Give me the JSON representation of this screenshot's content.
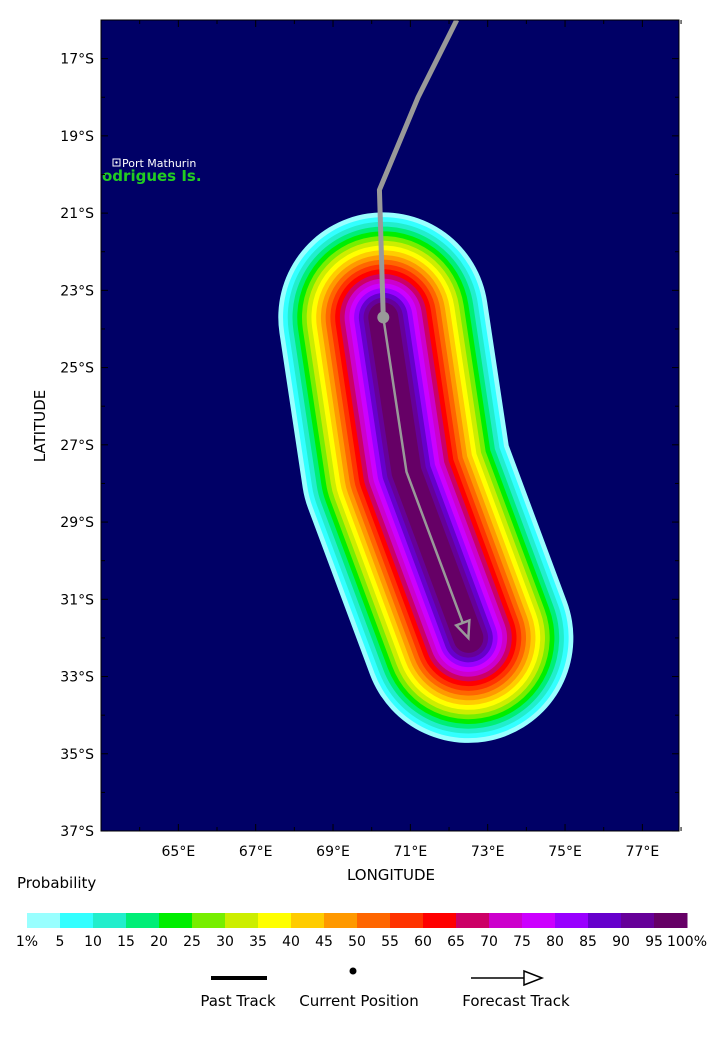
{
  "map": {
    "background_color": "#000066",
    "lat_ticks": [
      "17°S",
      "19°S",
      "21°S",
      "23°S",
      "25°S",
      "27°S",
      "29°S",
      "31°S",
      "33°S",
      "35°S",
      "37°S"
    ],
    "lon_ticks": [
      "65°E",
      "67°E",
      "69°E",
      "71°E",
      "73°E",
      "75°E",
      "77°E"
    ],
    "xlabel": "LONGITUDE",
    "ylabel": "LATITUDE",
    "place_label": "Port Mathurin",
    "island_label": "odrigues Is.",
    "island_label_color": "#22cc22"
  },
  "legend": {
    "title": "Probability",
    "color_stops": [
      "#99ffff",
      "#33ffff",
      "#22eecc",
      "#00ee77",
      "#00ee00",
      "#77ee00",
      "#ccee00",
      "#ffff00",
      "#ffcc00",
      "#ff9900",
      "#ff6600",
      "#ff3300",
      "#ff0000",
      "#cc0066",
      "#cc00cc",
      "#cc00ff",
      "#9900ff",
      "#6600cc",
      "#660099",
      "#660066"
    ],
    "labels": [
      "1%",
      "5",
      "10",
      "15",
      "20",
      "25",
      "30",
      "35",
      "40",
      "45",
      "50",
      "55",
      "60",
      "65",
      "70",
      "75",
      "80",
      "85",
      "90",
      "95",
      "100%"
    ]
  },
  "track_legend": {
    "past_track": "Past Track",
    "current_position": "Current Position",
    "forecast_track": "Forecast Track"
  },
  "track": {
    "past": [
      [
        72.2,
        16.0
      ],
      [
        71.2,
        18.0
      ],
      [
        70.2,
        20.4
      ],
      [
        70.3,
        23.7
      ]
    ],
    "current": [
      70.3,
      23.7
    ],
    "forecast": [
      [
        70.3,
        23.7
      ],
      [
        70.9,
        27.7
      ],
      [
        72.5,
        32.0
      ]
    ]
  }
}
